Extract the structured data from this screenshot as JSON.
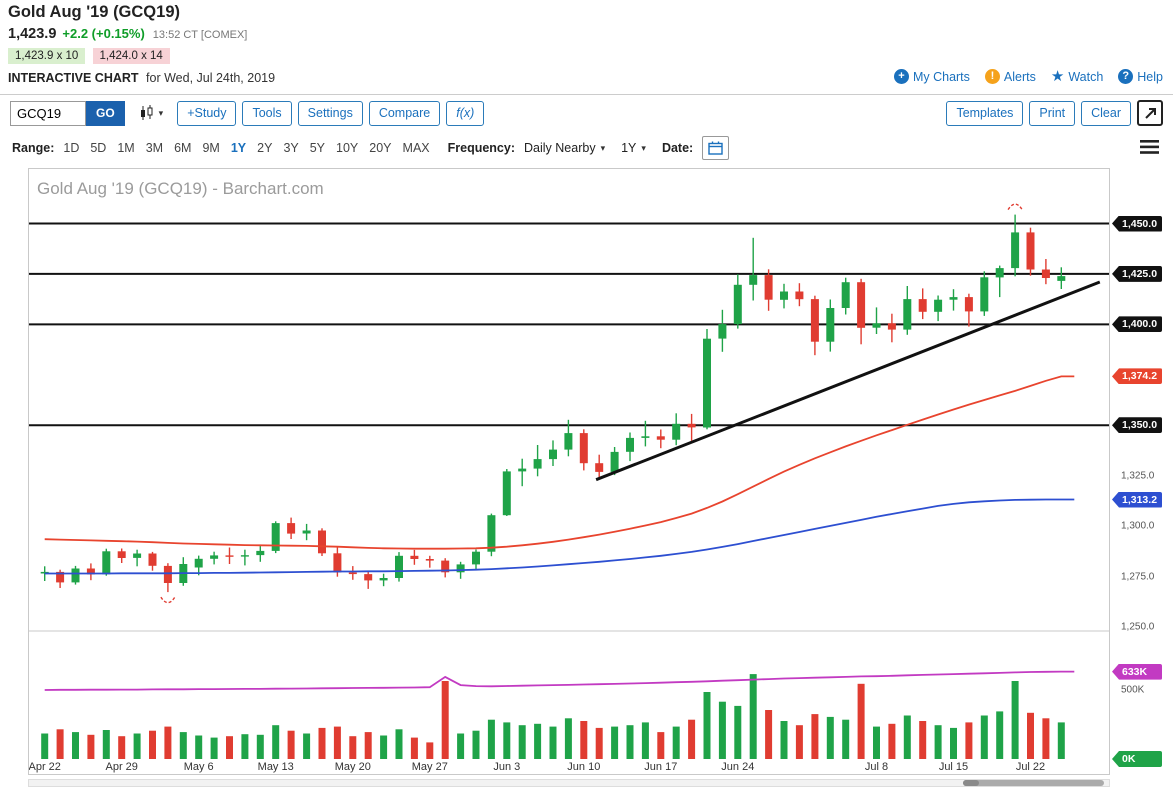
{
  "header": {
    "title": "Gold Aug '19 (GCQ19)",
    "last_price": "1,423.9",
    "change": "+2.2 (+0.15%)",
    "time": "13:52 CT [COMEX]",
    "bid": "1,423.9 x 10",
    "ask": "1,424.0 x 14",
    "chart_label": "INTERACTIVE CHART",
    "chart_date": "for Wed, Jul 24th, 2019",
    "links": {
      "my_charts": "My Charts",
      "alerts": "Alerts",
      "watch": "Watch",
      "help": "Help"
    }
  },
  "icons": {
    "plus": "+",
    "exclamation": "!",
    "star": "★",
    "question": "?",
    "caret": "▾"
  },
  "toolbar": {
    "symbol_value": "GCQ19",
    "go": "GO",
    "study": "+Study",
    "tools": "Tools",
    "settings": "Settings",
    "compare": "Compare",
    "fx": "f(x)",
    "templates": "Templates",
    "print": "Print",
    "clear": "Clear"
  },
  "range_bar": {
    "range_label": "Range:",
    "options": [
      "1D",
      "5D",
      "1M",
      "3M",
      "6M",
      "9M",
      "1Y",
      "2Y",
      "3Y",
      "5Y",
      "10Y",
      "20Y",
      "MAX"
    ],
    "selected": "1Y",
    "frequency_label": "Frequency:",
    "frequency_value": "Daily Nearby",
    "period_value": "1Y",
    "date_label": "Date:"
  },
  "chart_data": {
    "type": "candlestick",
    "watermark": "Gold Aug '19 (GCQ19) - Barchart.com",
    "ylim": [
      1249,
      1477
    ],
    "volume_ylim_k": [
      0,
      920
    ],
    "colors": {
      "up": "#1fa348",
      "down": "#e03c31",
      "ma_fast": "#e8442e",
      "ma_slow": "#2d4fd1",
      "open_interest": "#c23ac2",
      "support": "#111111",
      "trend": "#111111"
    },
    "support_lines": [
      1450,
      1425,
      1400,
      1350
    ],
    "trendline": {
      "i1": 35.8,
      "p1": 1323,
      "i2": 68.5,
      "p2": 1421
    },
    "markers": [
      {
        "index": 8,
        "position": "below"
      },
      {
        "index": 63,
        "position": "above"
      }
    ],
    "x_ticks": [
      [
        0,
        "Apr 22"
      ],
      [
        5,
        "Apr 29"
      ],
      [
        10,
        "May 6"
      ],
      [
        15,
        "May 13"
      ],
      [
        20,
        "May 20"
      ],
      [
        25,
        "May 27"
      ],
      [
        30,
        "Jun 3"
      ],
      [
        35,
        "Jun 10"
      ],
      [
        40,
        "Jun 17"
      ],
      [
        45,
        "Jun 24"
      ],
      [
        54,
        "Jul 8"
      ],
      [
        59,
        "Jul 15"
      ],
      [
        64,
        "Jul 22"
      ]
    ],
    "y_axis": {
      "pills": [
        {
          "price": 1450.0,
          "label": "1,450.0",
          "color": "#111111"
        },
        {
          "price": 1425.0,
          "label": "1,425.0",
          "color": "#111111"
        },
        {
          "price": 1400.0,
          "label": "1,400.0",
          "color": "#111111"
        },
        {
          "price": 1374.2,
          "label": "1,374.2",
          "color": "#e8442e"
        },
        {
          "price": 1350.0,
          "label": "1,350.0",
          "color": "#111111"
        },
        {
          "price": 1313.2,
          "label": "1,313.2",
          "color": "#2d4fd1"
        }
      ],
      "texts": [
        {
          "price": 1325.0,
          "label": "1,325.0"
        },
        {
          "price": 1300.0,
          "label": "1,300.0"
        },
        {
          "price": 1275.0,
          "label": "1,275.0"
        },
        {
          "price": 1250.0,
          "label": "1,250.0"
        }
      ]
    },
    "volume_axis": {
      "mid_value": 500,
      "mid_label": "500K",
      "zero_label": "0K"
    },
    "candles": [
      [
        "Apr 22",
        1276.5,
        1280.1,
        1272.8,
        1277.3,
        185
      ],
      [
        "Apr 23",
        1277.3,
        1278.4,
        1269.3,
        1272.1,
        215
      ],
      [
        "Apr 24",
        1272.1,
        1280.3,
        1271.0,
        1279.0,
        195
      ],
      [
        "Apr 25",
        1279.0,
        1281.5,
        1273.2,
        1276.1,
        175
      ],
      [
        "Apr 26",
        1276.1,
        1288.8,
        1275.4,
        1287.5,
        210
      ],
      [
        "Apr 29",
        1287.5,
        1288.9,
        1281.7,
        1284.2,
        165
      ],
      [
        "Apr 30",
        1284.2,
        1288.3,
        1280.1,
        1286.4,
        185
      ],
      [
        "May 1",
        1286.4,
        1287.2,
        1277.9,
        1280.3,
        205
      ],
      [
        "May 2",
        1280.3,
        1281.6,
        1267.3,
        1271.8,
        235
      ],
      [
        "May 3",
        1271.8,
        1284.6,
        1270.4,
        1281.2,
        195
      ],
      [
        "May 6",
        1279.5,
        1285.4,
        1275.6,
        1283.8,
        170
      ],
      [
        "May 7",
        1283.8,
        1287.3,
        1281.0,
        1285.5,
        155
      ],
      [
        "May 8",
        1285.5,
        1289.4,
        1281.2,
        1285.2,
        165
      ],
      [
        "May 9",
        1285.2,
        1288.3,
        1280.5,
        1285.6,
        180
      ],
      [
        "May 10",
        1285.6,
        1290.1,
        1282.3,
        1287.7,
        175
      ],
      [
        "May 13",
        1287.7,
        1302.4,
        1286.6,
        1301.5,
        245
      ],
      [
        "May 14",
        1301.5,
        1304.2,
        1293.6,
        1296.3,
        205
      ],
      [
        "May 15",
        1296.3,
        1301.1,
        1293.0,
        1297.8,
        185
      ],
      [
        "May 16",
        1297.8,
        1298.9,
        1285.2,
        1286.5,
        225
      ],
      [
        "May 17",
        1286.5,
        1289.8,
        1274.9,
        1277.0,
        235
      ],
      [
        "May 20",
        1277.0,
        1280.2,
        1273.4,
        1276.2,
        165
      ],
      [
        "May 21",
        1276.2,
        1277.5,
        1268.9,
        1273.1,
        195
      ],
      [
        "May 22",
        1273.1,
        1276.4,
        1270.2,
        1274.3,
        170
      ],
      [
        "May 23",
        1274.3,
        1287.1,
        1272.5,
        1285.3,
        215
      ],
      [
        "May 24",
        1285.3,
        1288.2,
        1280.8,
        1283.7,
        155
      ],
      [
        "May 27",
        1283.7,
        1285.3,
        1279.4,
        1282.9,
        120
      ],
      [
        "May 28",
        1282.9,
        1284.1,
        1274.6,
        1277.1,
        565
      ],
      [
        "May 29",
        1277.1,
        1282.3,
        1273.9,
        1281.0,
        185
      ],
      [
        "May 30",
        1281.0,
        1288.4,
        1278.2,
        1287.3,
        205
      ],
      [
        "May 31",
        1287.3,
        1306.2,
        1285.1,
        1305.4,
        285
      ],
      [
        "Jun 3",
        1305.4,
        1328.3,
        1305.0,
        1327.1,
        265
      ],
      [
        "Jun 4",
        1327.1,
        1333.4,
        1319.8,
        1328.5,
        245
      ],
      [
        "Jun 5",
        1328.5,
        1340.2,
        1324.7,
        1333.2,
        255
      ],
      [
        "Jun 6",
        1333.2,
        1342.5,
        1329.8,
        1337.9,
        235
      ],
      [
        "Jun 7",
        1337.9,
        1352.7,
        1334.6,
        1346.1,
        295
      ],
      [
        "Jun 10",
        1346.1,
        1348.0,
        1327.6,
        1331.2,
        275
      ],
      [
        "Jun 11",
        1331.2,
        1335.4,
        1323.1,
        1326.9,
        225
      ],
      [
        "Jun 12",
        1326.9,
        1339.2,
        1325.3,
        1336.8,
        235
      ],
      [
        "Jun 13",
        1336.8,
        1346.4,
        1332.2,
        1343.7,
        245
      ],
      [
        "Jun 14",
        1343.7,
        1352.2,
        1339.5,
        1344.5,
        265
      ],
      [
        "Jun 17",
        1344.5,
        1347.9,
        1338.6,
        1342.8,
        195
      ],
      [
        "Jun 18",
        1342.8,
        1355.9,
        1340.1,
        1350.7,
        235
      ],
      [
        "Jun 19",
        1350.7,
        1355.6,
        1342.3,
        1348.9,
        285
      ],
      [
        "Jun 20",
        1348.9,
        1397.7,
        1348.0,
        1392.9,
        485
      ],
      [
        "Jun 21",
        1392.9,
        1407.2,
        1386.4,
        1400.1,
        415
      ],
      [
        "Jun 24",
        1400.1,
        1424.8,
        1397.9,
        1419.6,
        385
      ],
      [
        "Jun 25",
        1419.6,
        1442.9,
        1411.8,
        1424.4,
        615
      ],
      [
        "Jun 26",
        1424.4,
        1427.3,
        1406.7,
        1412.2,
        355
      ],
      [
        "Jun 27",
        1412.2,
        1420.1,
        1407.9,
        1416.3,
        275
      ],
      [
        "Jun 28",
        1416.3,
        1420.4,
        1409.0,
        1412.5,
        245
      ],
      [
        "Jul 1",
        1412.5,
        1414.2,
        1384.7,
        1391.4,
        325
      ],
      [
        "Jul 2",
        1391.4,
        1412.3,
        1386.5,
        1408.1,
        305
      ],
      [
        "Jul 3",
        1408.1,
        1423.1,
        1404.9,
        1420.9,
        285
      ],
      [
        "Jul 5",
        1420.9,
        1422.6,
        1390.1,
        1398.3,
        545
      ],
      [
        "Jul 8",
        1398.3,
        1408.4,
        1395.2,
        1400.5,
        235
      ],
      [
        "Jul 9",
        1400.5,
        1405.3,
        1391.1,
        1397.4,
        255
      ],
      [
        "Jul 10",
        1397.4,
        1419.0,
        1394.8,
        1412.5,
        315
      ],
      [
        "Jul 11",
        1412.5,
        1417.8,
        1402.6,
        1406.2,
        275
      ],
      [
        "Jul 12",
        1406.2,
        1414.3,
        1401.6,
        1412.2,
        245
      ],
      [
        "Jul 15",
        1412.2,
        1417.4,
        1406.8,
        1413.5,
        225
      ],
      [
        "Jul 16",
        1413.5,
        1415.2,
        1398.9,
        1406.4,
        265
      ],
      [
        "Jul 17",
        1406.4,
        1426.3,
        1404.2,
        1423.3,
        315
      ],
      [
        "Jul 18",
        1423.3,
        1429.1,
        1413.5,
        1427.9,
        345
      ],
      [
        "Jul 19",
        1427.9,
        1454.4,
        1423.8,
        1445.6,
        565
      ],
      [
        "Jul 22",
        1445.6,
        1447.9,
        1424.1,
        1427.2,
        335
      ],
      [
        "Jul 23",
        1427.2,
        1432.4,
        1419.9,
        1423.0,
        295
      ],
      [
        "Jul 24",
        1421.5,
        1428.3,
        1417.5,
        1423.9,
        265
      ]
    ],
    "red_ma": {
      "last_label": "1,374.2",
      "values": [
        1293.5,
        1293.3,
        1293.1,
        1292.9,
        1292.7,
        1292.5,
        1292.3,
        1292.0,
        1291.7,
        1291.4,
        1291.2,
        1291.0,
        1290.8,
        1290.6,
        1290.5,
        1290.4,
        1290.3,
        1290.2,
        1290.0,
        1289.8,
        1289.5,
        1289.2,
        1289.0,
        1288.9,
        1288.8,
        1288.8,
        1288.8,
        1288.9,
        1289.0,
        1289.3,
        1289.8,
        1290.5,
        1291.3,
        1292.2,
        1293.3,
        1294.5,
        1295.8,
        1297.2,
        1298.7,
        1300.3,
        1302.0,
        1304.0,
        1306.2,
        1309.0,
        1312.2,
        1315.8,
        1319.6,
        1323.4,
        1327.0,
        1330.4,
        1333.6,
        1336.6,
        1339.5,
        1342.3,
        1345.0,
        1347.6,
        1350.2,
        1352.8,
        1355.3,
        1357.8,
        1360.2,
        1362.5,
        1364.8,
        1367.0,
        1369.5,
        1372.0,
        1374.2
      ]
    },
    "blue_ma": {
      "last_label": "1,313.2",
      "values": [
        1276.5,
        1276.5,
        1276.5,
        1276.5,
        1276.5,
        1276.6,
        1276.6,
        1276.6,
        1276.6,
        1276.7,
        1276.7,
        1276.8,
        1276.8,
        1276.9,
        1277.0,
        1277.1,
        1277.2,
        1277.3,
        1277.4,
        1277.5,
        1277.5,
        1277.6,
        1277.6,
        1277.7,
        1277.8,
        1277.9,
        1278.0,
        1278.2,
        1278.4,
        1278.7,
        1279.1,
        1279.5,
        1280.0,
        1280.5,
        1281.1,
        1281.7,
        1282.3,
        1283.0,
        1283.7,
        1284.5,
        1285.3,
        1286.2,
        1287.2,
        1288.4,
        1289.7,
        1291.1,
        1292.6,
        1294.1,
        1295.6,
        1297.1,
        1298.6,
        1300.1,
        1301.6,
        1303.1,
        1304.6,
        1306.0,
        1307.4,
        1308.7,
        1310.0,
        1311.0,
        1311.8,
        1312.3,
        1312.7,
        1313.0,
        1313.1,
        1313.2,
        1313.2
      ]
    },
    "open_interest": {
      "last_label": "633K",
      "values": [
        500,
        501,
        501,
        502,
        502,
        503,
        503,
        504,
        505,
        505,
        506,
        506,
        507,
        508,
        508,
        509,
        510,
        511,
        512,
        513,
        514,
        515,
        516,
        517,
        518,
        520,
        595,
        535,
        528,
        527,
        529,
        531,
        533,
        535,
        537,
        540,
        542,
        544,
        547,
        550,
        553,
        556,
        559,
        563,
        567,
        571,
        575,
        579,
        583,
        586,
        589,
        592,
        595,
        598,
        600,
        603,
        606,
        609,
        612,
        615,
        618,
        621,
        624,
        627,
        630,
        632,
        633
      ]
    }
  }
}
